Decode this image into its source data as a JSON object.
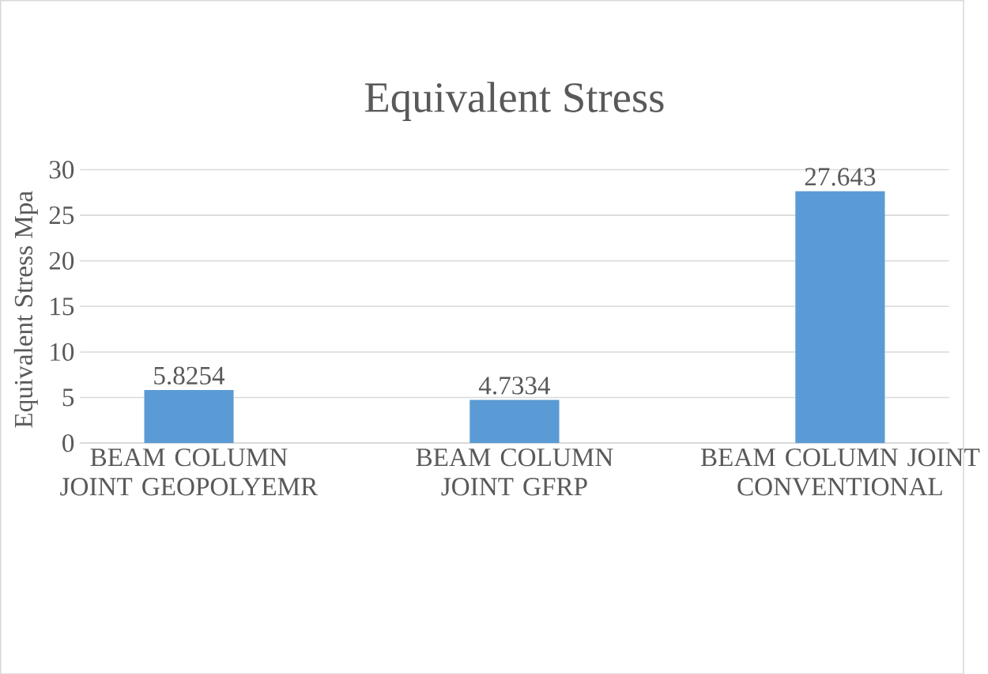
{
  "chart_data": {
    "type": "bar",
    "title": "Equivalent Stress",
    "ylabel": "Equivalent Stress Mpa",
    "categories": [
      "BEAM COLUMN JOINT GEOPOLYEMR",
      "BEAM COLUMN JOINT GFRP",
      "BEAM COLUMN JOINT CONVENTIONAL"
    ],
    "values": [
      5.8254,
      4.7334,
      27.643
    ],
    "color": "#5b9bd5",
    "ylim": [
      0,
      30
    ],
    "yticks": [
      0,
      5,
      10,
      15,
      20,
      25,
      30
    ],
    "grid": "y",
    "data_labels": true
  }
}
